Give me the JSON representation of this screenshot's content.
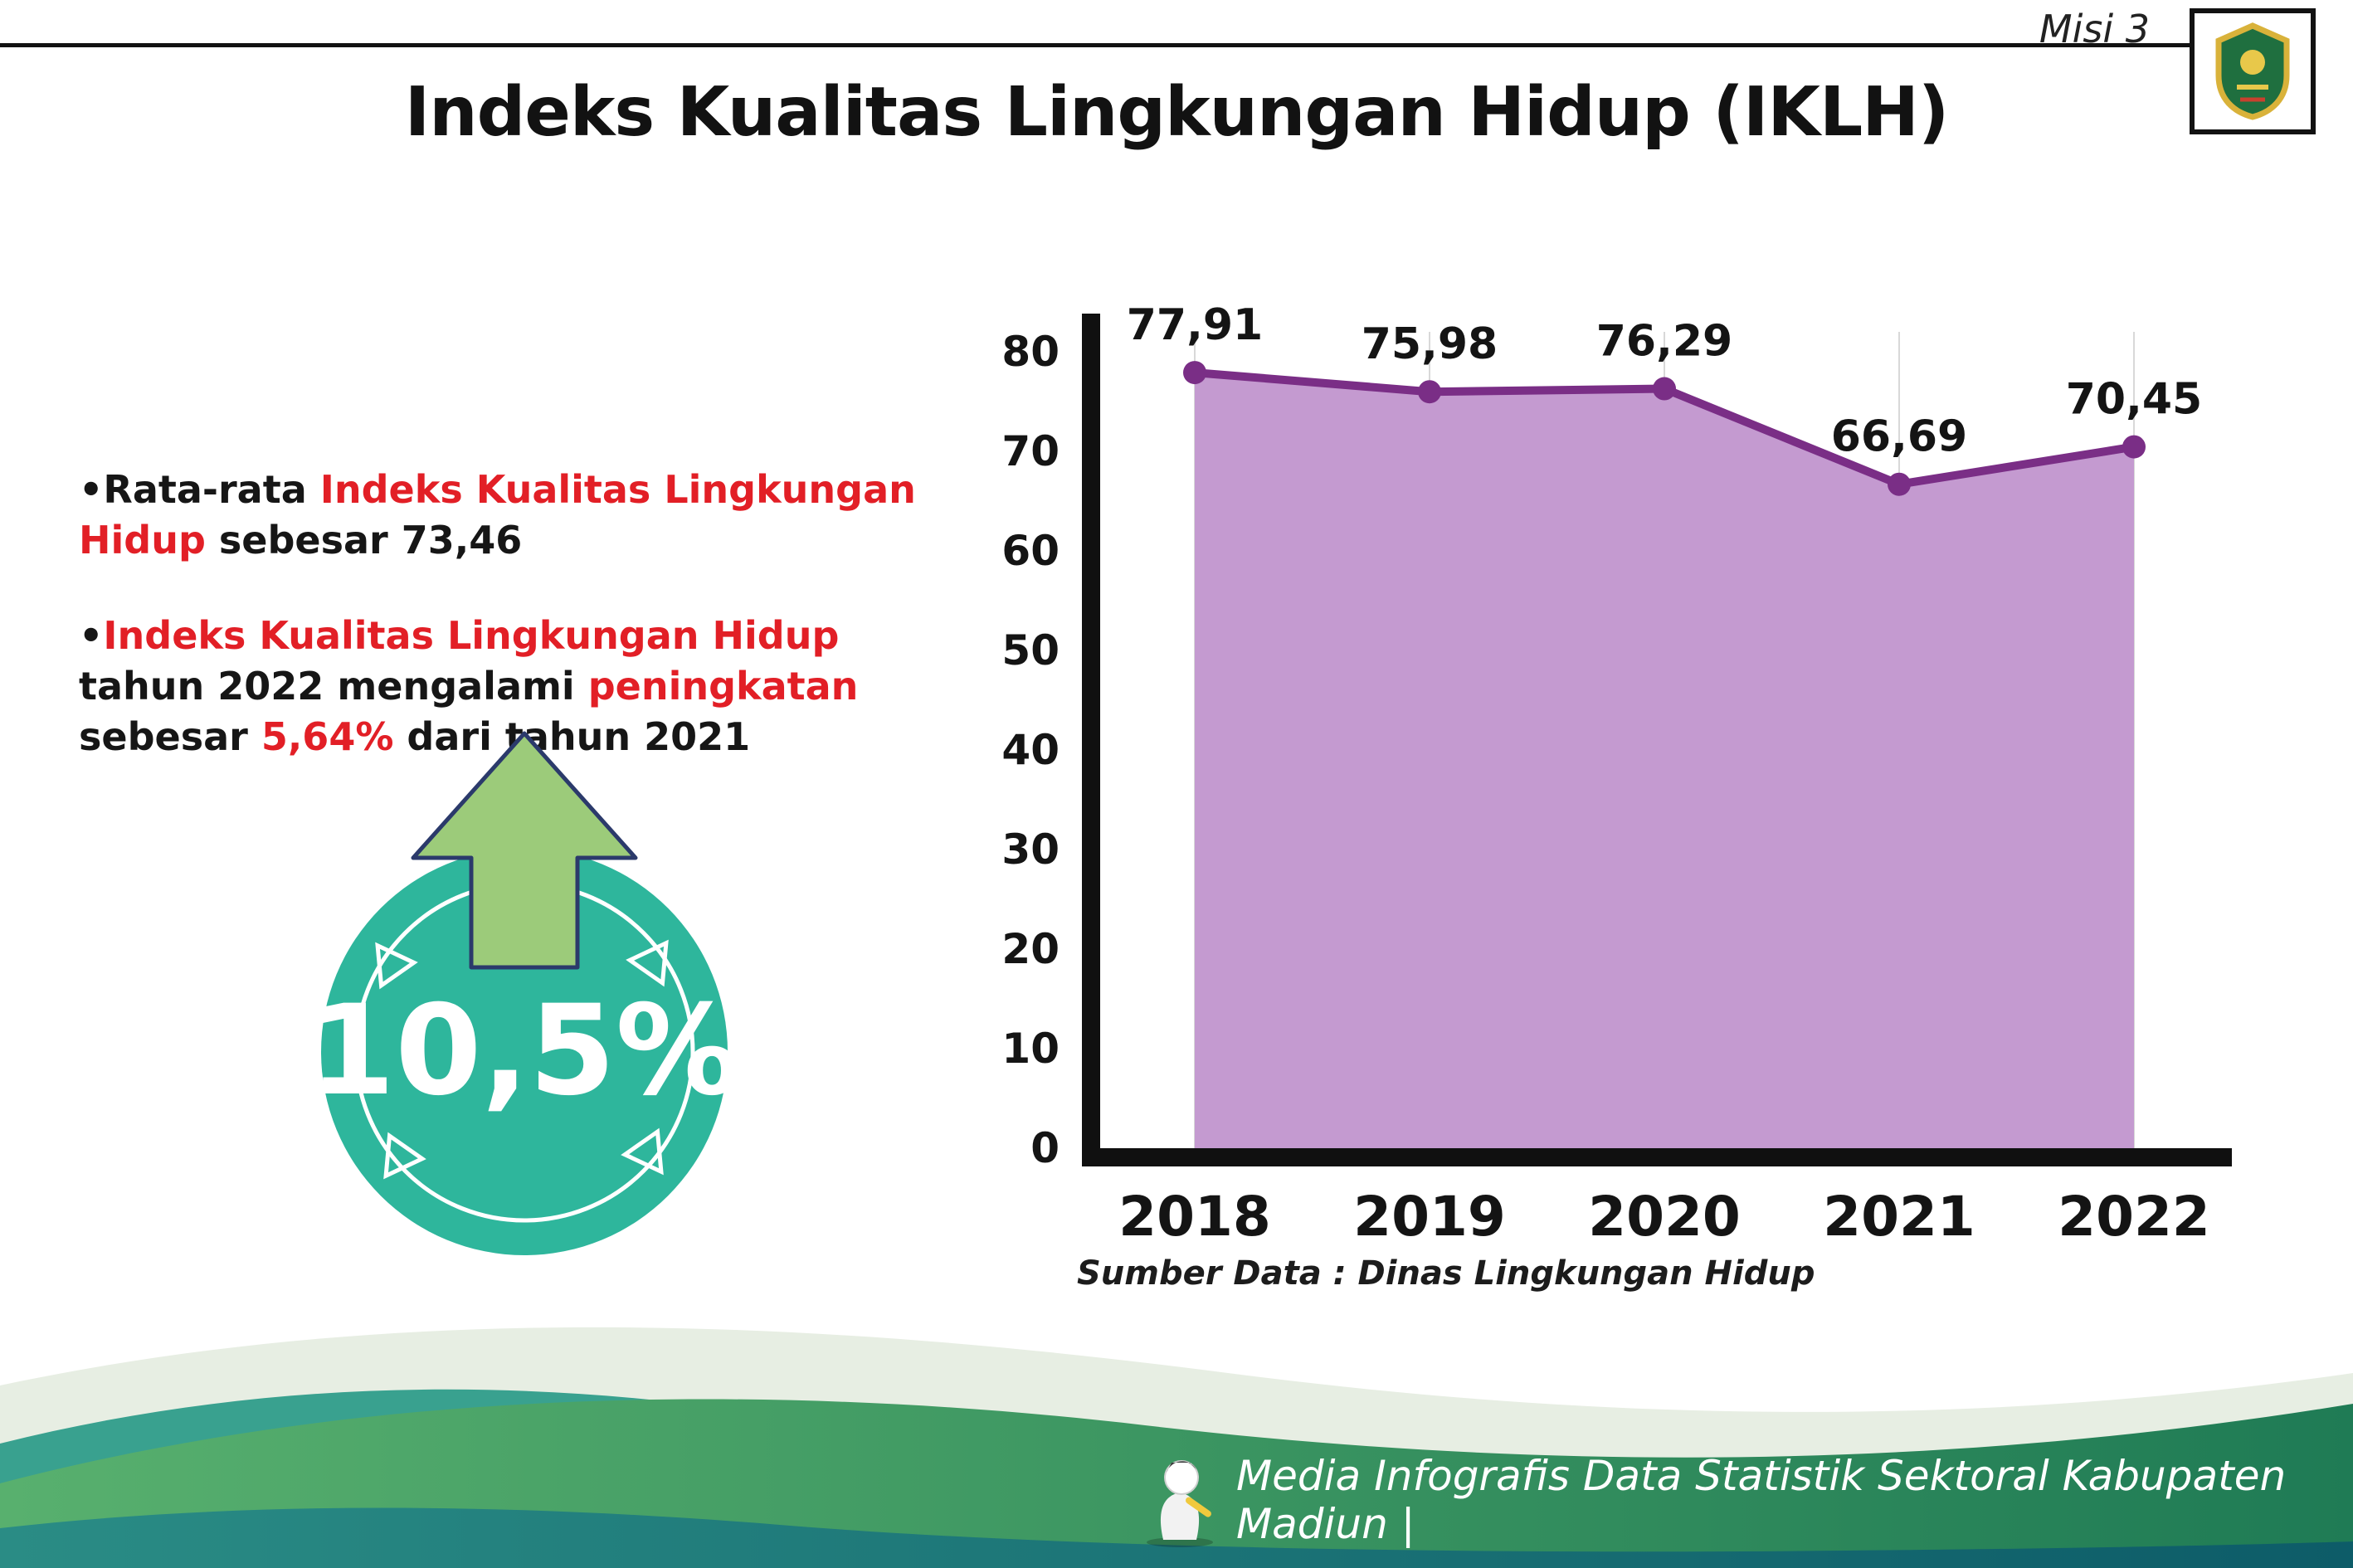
{
  "header": {
    "misi_label": "Misi 3",
    "logo_name": "kabupaten-madiun-crest"
  },
  "title": "Indeks Kualitas Lingkungan Hidup (IKLH)",
  "bullets": {
    "marker": "•",
    "b1_pre": "Rata-rata ",
    "b1_highlight": "Indeks Kualitas Lingkungan Hidup",
    "b1_post": " sebesar 73,46",
    "b2_highlight1": "Indeks Kualitas Lingkungan Hidup",
    "b2_mid1": " tahun 2022 mengalami ",
    "b2_highlight2": "peningkatan",
    "b2_mid2": " sebesar ",
    "b2_highlight3": "5,64%",
    "b2_post": " dari tahun 2021"
  },
  "badge": {
    "value": "10,5%"
  },
  "chart_data": {
    "type": "area",
    "categories": [
      "2018",
      "2019",
      "2020",
      "2021",
      "2022"
    ],
    "values": [
      77.91,
      75.98,
      76.29,
      66.69,
      70.45
    ],
    "value_labels": [
      "77,91",
      "75,98",
      "76,29",
      "66,69",
      "70,45"
    ],
    "title": "",
    "xlabel": "",
    "ylabel": "",
    "ylim": [
      0,
      80
    ],
    "yticks": [
      0,
      10,
      20,
      30,
      40,
      50,
      60,
      70,
      80
    ],
    "grid": "vertical",
    "legend": "none",
    "area_color": "#c49ad0",
    "line_color": "#7a2e86"
  },
  "source_caption": "Sumber Data : Dinas Lingkungan Hidup",
  "footer": {
    "caption": "Media Infografis Data Statistik Sektoral Kabupaten Madiun |"
  },
  "colors": {
    "accent_red": "#e21f26",
    "badge_teal": "#2eb69c",
    "arrow_green": "#9ccb7a",
    "arrow_outline": "#2b3a6b",
    "footer_green": "#3f9e6e",
    "footer_teal": "#39a18f",
    "footer_dark": "#0e5f6b",
    "axis_black": "#101010"
  }
}
